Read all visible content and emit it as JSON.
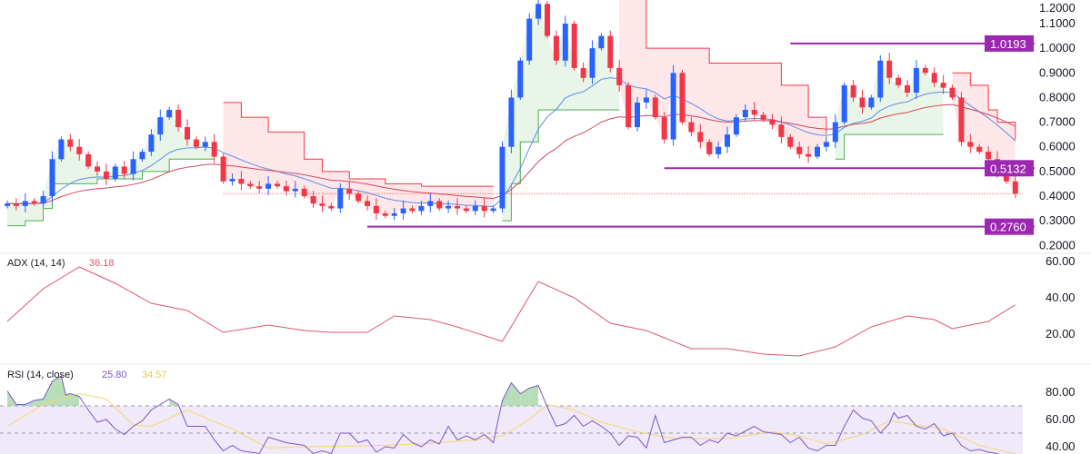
{
  "chart_data": {
    "type": "candlestick",
    "price_axis": {
      "ticks": [
        "1.2000",
        "1.1000",
        "1.0000",
        "0.9000",
        "0.8000",
        "0.7000",
        "0.6000",
        "0.5000",
        "0.4000",
        "0.3000",
        "0.2000"
      ],
      "range": [
        0.19,
        1.2
      ]
    },
    "closes": [
      0.37,
      0.36,
      0.38,
      0.37,
      0.4,
      0.55,
      0.63,
      0.6,
      0.57,
      0.52,
      0.5,
      0.47,
      0.52,
      0.49,
      0.55,
      0.58,
      0.65,
      0.72,
      0.75,
      0.68,
      0.63,
      0.6,
      0.62,
      0.56,
      0.46,
      0.47,
      0.45,
      0.44,
      0.43,
      0.45,
      0.44,
      0.42,
      0.43,
      0.4,
      0.37,
      0.36,
      0.35,
      0.43,
      0.41,
      0.38,
      0.36,
      0.33,
      0.32,
      0.33,
      0.35,
      0.34,
      0.36,
      0.38,
      0.35,
      0.36,
      0.35,
      0.34,
      0.36,
      0.34,
      0.35,
      0.6,
      0.8,
      0.95,
      1.12,
      1.18,
      1.05,
      0.95,
      1.1,
      0.92,
      0.88,
      1.0,
      1.05,
      0.92,
      0.85,
      0.68,
      0.78,
      0.8,
      0.72,
      0.63,
      0.9,
      0.7,
      0.66,
      0.62,
      0.57,
      0.6,
      0.65,
      0.72,
      0.75,
      0.73,
      0.71,
      0.69,
      0.64,
      0.6,
      0.57,
      0.56,
      0.6,
      0.62,
      0.7,
      0.85,
      0.8,
      0.76,
      0.8,
      0.95,
      0.88,
      0.85,
      0.82,
      0.92,
      0.9,
      0.86,
      0.84,
      0.8,
      0.62,
      0.6,
      0.58,
      0.55,
      0.5,
      0.46,
      0.41
    ],
    "supertrend": [
      {
        "dir": "up",
        "points": [
          [
            0,
            0.28
          ],
          [
            2,
            0.3
          ],
          [
            4,
            0.35
          ],
          [
            5,
            0.45
          ],
          [
            10,
            0.47
          ],
          [
            15,
            0.5
          ],
          [
            18,
            0.55
          ],
          [
            23,
            0.55
          ]
        ]
      },
      {
        "dir": "down",
        "points": [
          [
            24,
            0.78
          ],
          [
            26,
            0.72
          ],
          [
            29,
            0.66
          ],
          [
            33,
            0.55
          ],
          [
            35,
            0.5
          ],
          [
            38,
            0.47
          ],
          [
            42,
            0.45
          ],
          [
            46,
            0.44
          ],
          [
            54,
            0.44
          ]
        ]
      },
      {
        "dir": "up",
        "points": [
          [
            55,
            0.3
          ],
          [
            56,
            0.45
          ],
          [
            57,
            0.62
          ],
          [
            59,
            0.75
          ],
          [
            68,
            0.75
          ]
        ]
      },
      {
        "dir": "down",
        "points": [
          [
            68,
            1.22
          ],
          [
            71,
            1.0
          ],
          [
            78,
            0.94
          ],
          [
            86,
            0.85
          ],
          [
            89,
            0.72
          ],
          [
            91,
            0.65
          ]
        ]
      },
      {
        "dir": "up",
        "points": [
          [
            92,
            0.55
          ],
          [
            93,
            0.65
          ],
          [
            104,
            0.65
          ]
        ]
      },
      {
        "dir": "down",
        "points": [
          [
            105,
            0.9
          ],
          [
            107,
            0.85
          ],
          [
            109,
            0.75
          ],
          [
            110,
            0.7
          ],
          [
            112,
            0.63
          ]
        ]
      }
    ],
    "levels": [
      {
        "label": "1.0193",
        "value": 1.0193,
        "from_bar": 87
      },
      {
        "label": "0.5132",
        "value": 0.5132,
        "from_bar": 73
      },
      {
        "label": "0.2760",
        "value": 0.276,
        "from_bar": 40
      }
    ],
    "adx": {
      "title": "ADX (14, 14)",
      "last_label": "36.18",
      "ticks": [
        "60.00",
        "40.00",
        "20.00"
      ],
      "points": [
        [
          0,
          27
        ],
        [
          4,
          45
        ],
        [
          8,
          57
        ],
        [
          12,
          48
        ],
        [
          16,
          37
        ],
        [
          20,
          33
        ],
        [
          24,
          21
        ],
        [
          29,
          25
        ],
        [
          33,
          22
        ],
        [
          36,
          21
        ],
        [
          40,
          21
        ],
        [
          43,
          30
        ],
        [
          47,
          28
        ],
        [
          50,
          24
        ],
        [
          55,
          16
        ],
        [
          59,
          49
        ],
        [
          63,
          40
        ],
        [
          67,
          26
        ],
        [
          71,
          22
        ],
        [
          76,
          12
        ],
        [
          80,
          12
        ],
        [
          84,
          9
        ],
        [
          88,
          8
        ],
        [
          92,
          13
        ],
        [
          96,
          24
        ],
        [
          100,
          30
        ],
        [
          103,
          28
        ],
        [
          105,
          23
        ],
        [
          109,
          27
        ],
        [
          112,
          36.18
        ]
      ]
    },
    "rsi": {
      "title": "RSI (14, close)",
      "last_label": "25.80",
      "ma_label": "34.57",
      "ticks": [
        "80.00",
        "60.00",
        "40.00"
      ],
      "upper": 70,
      "middle": 50,
      "points": [
        [
          0,
          81
        ],
        [
          1,
          71
        ],
        [
          2,
          71
        ],
        [
          3,
          74
        ],
        [
          4,
          75
        ],
        [
          5,
          88
        ],
        [
          6,
          92
        ],
        [
          6.5,
          78
        ],
        [
          7,
          79
        ],
        [
          8,
          77
        ],
        [
          9,
          67
        ],
        [
          10,
          58
        ],
        [
          11,
          60
        ],
        [
          12,
          53
        ],
        [
          13,
          49
        ],
        [
          14,
          55
        ],
        [
          15,
          59
        ],
        [
          16,
          67
        ],
        [
          18,
          75
        ],
        [
          19,
          71
        ],
        [
          20,
          55
        ],
        [
          22,
          55
        ],
        [
          23,
          45
        ],
        [
          24,
          37
        ],
        [
          25,
          41
        ],
        [
          26,
          37
        ],
        [
          28,
          35
        ],
        [
          29,
          47
        ],
        [
          30,
          45
        ],
        [
          31,
          43
        ],
        [
          33,
          41
        ],
        [
          34,
          35
        ],
        [
          35,
          37
        ],
        [
          36,
          35
        ],
        [
          37,
          50
        ],
        [
          38,
          50
        ],
        [
          39,
          43
        ],
        [
          40,
          45
        ],
        [
          41,
          36
        ],
        [
          42,
          40
        ],
        [
          43,
          39
        ],
        [
          44,
          49
        ],
        [
          45,
          43
        ],
        [
          46,
          40
        ],
        [
          47,
          45
        ],
        [
          48,
          42
        ],
        [
          49,
          55
        ],
        [
          50,
          45
        ],
        [
          51,
          48
        ],
        [
          52,
          45
        ],
        [
          53,
          49
        ],
        [
          54,
          43
        ],
        [
          55,
          74
        ],
        [
          56,
          87
        ],
        [
          57,
          79
        ],
        [
          58,
          83
        ],
        [
          59,
          85
        ],
        [
          60,
          69
        ],
        [
          61,
          55
        ],
        [
          62,
          57
        ],
        [
          63,
          63
        ],
        [
          64,
          55
        ],
        [
          65,
          59
        ],
        [
          66,
          55
        ],
        [
          67,
          50
        ],
        [
          68,
          41
        ],
        [
          69,
          48
        ],
        [
          70,
          47
        ],
        [
          71,
          39
        ],
        [
          72,
          63
        ],
        [
          73,
          43
        ],
        [
          74,
          45
        ],
        [
          75,
          47
        ],
        [
          76,
          47
        ],
        [
          77,
          41
        ],
        [
          78,
          45
        ],
        [
          79,
          43
        ],
        [
          80,
          50
        ],
        [
          81,
          48
        ],
        [
          83,
          55
        ],
        [
          84,
          51
        ],
        [
          86,
          49
        ],
        [
          87,
          43
        ],
        [
          88,
          47
        ],
        [
          89,
          39
        ],
        [
          90,
          37
        ],
        [
          91,
          41
        ],
        [
          92,
          41
        ],
        [
          93,
          55
        ],
        [
          94,
          67
        ],
        [
          95,
          61
        ],
        [
          96,
          59
        ],
        [
          97,
          50
        ],
        [
          98,
          57
        ],
        [
          98.5,
          65
        ],
        [
          99,
          61
        ],
        [
          100,
          63
        ],
        [
          101,
          55
        ],
        [
          102,
          53
        ],
        [
          103,
          57
        ],
        [
          104,
          48
        ],
        [
          105,
          50
        ],
        [
          106,
          41
        ],
        [
          107,
          37
        ],
        [
          108,
          38
        ],
        [
          109,
          36
        ],
        [
          110,
          35
        ],
        [
          111,
          31
        ],
        [
          112,
          25.8
        ]
      ],
      "ma_points": [
        [
          0,
          55
        ],
        [
          4,
          71
        ],
        [
          8,
          79
        ],
        [
          11,
          75
        ],
        [
          14,
          56
        ],
        [
          16,
          55
        ],
        [
          20,
          67
        ],
        [
          25,
          53
        ],
        [
          29,
          39
        ],
        [
          33,
          40
        ],
        [
          42,
          41
        ],
        [
          48,
          43
        ],
        [
          52,
          45
        ],
        [
          55,
          48
        ],
        [
          58,
          60
        ],
        [
          60,
          71
        ],
        [
          63,
          67
        ],
        [
          66,
          58
        ],
        [
          70,
          51
        ],
        [
          74,
          46
        ],
        [
          80,
          46
        ],
        [
          85,
          51
        ],
        [
          88,
          48
        ],
        [
          91,
          42
        ],
        [
          95,
          49
        ],
        [
          98,
          59
        ],
        [
          100,
          57
        ],
        [
          104,
          53
        ],
        [
          108,
          41
        ],
        [
          112,
          34.57
        ]
      ]
    }
  },
  "colors": {
    "bull": "#2962ff",
    "bear": "#f23645",
    "st_up": "#4caf50",
    "st_down": "#f23645",
    "st_up_fill": "#e6f4e6",
    "st_down_fill": "#fde4e6",
    "ma_fast": "#5b8def",
    "ma_slow": "#d3455b",
    "level": "#9c27b0",
    "adx": "#e0566a",
    "rsi": "#7e57c2",
    "rsi_ma": "#f5d76e",
    "rsi_band": "#efe9fa"
  }
}
